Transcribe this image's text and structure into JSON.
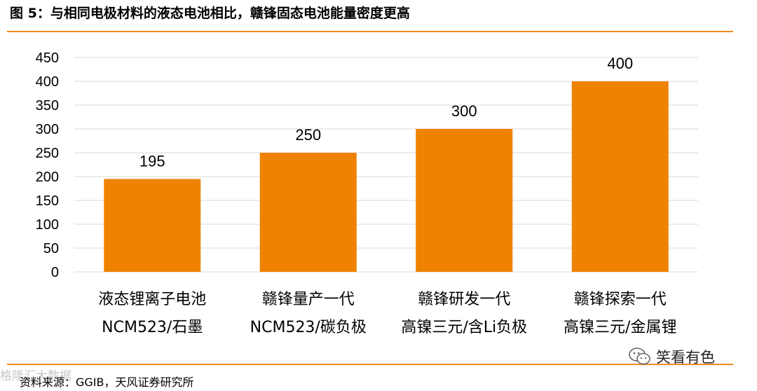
{
  "header": {
    "title": "图 5：与相同电极材料的液态电池相比，赣锋固态电池能量密度更高"
  },
  "chart_data": {
    "type": "bar",
    "title": "图 5：与相同电极材料的液态电池相比，赣锋固态电池能量密度更高",
    "categories": [
      [
        "液态锂离子电池",
        "NCM523/石墨"
      ],
      [
        "赣锋量产一代",
        "NCM523/碳负极"
      ],
      [
        "赣锋研发一代",
        "高镍三元/含Li负极"
      ],
      [
        "赣锋探索一代",
        "高镍三元/金属锂"
      ]
    ],
    "values": [
      195,
      250,
      300,
      400
    ],
    "ylim": [
      0,
      450
    ],
    "yticks": [
      0,
      50,
      100,
      150,
      200,
      250,
      300,
      350,
      400,
      450
    ],
    "xlabel": "",
    "ylabel": "",
    "grid": true,
    "bar_color": "#ef8200",
    "grid_color": "#d9d9d9"
  },
  "footer": {
    "source": "资料来源：GGIB，天风证券研究所",
    "watermark": "格隆汇大数据",
    "brand": "笑看有色"
  },
  "colors": {
    "accent": "#f08a24"
  }
}
